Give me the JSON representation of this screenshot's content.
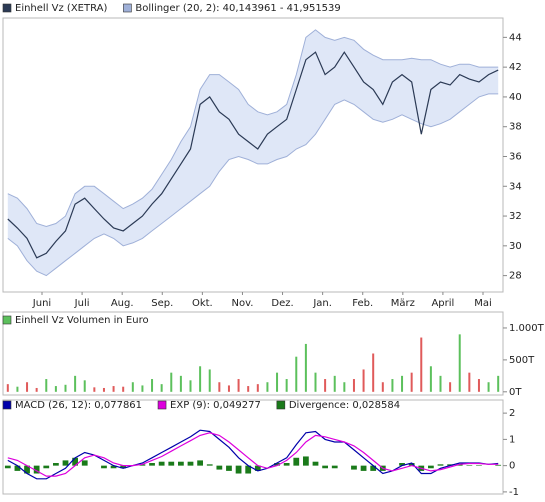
{
  "chart_data": [
    {
      "type": "line",
      "xticks": [
        "Juni",
        "Juli",
        "Aug.",
        "Sep.",
        "Okt.",
        "Nov.",
        "Dez.",
        "Jan.",
        "Feb.",
        "März",
        "April",
        "Mai"
      ],
      "ylim": [
        26.9,
        45.3
      ],
      "yticks": [
        28,
        30,
        32,
        34,
        36,
        38,
        40,
        42,
        44
      ],
      "series": [
        {
          "name": "Einhell Vz (XETRA)",
          "color": "#2b3a55",
          "values": [
            31.8,
            31.2,
            30.5,
            29.2,
            29.5,
            30.3,
            31.0,
            32.8,
            33.2,
            32.5,
            31.8,
            31.2,
            31.0,
            31.5,
            32.0,
            32.8,
            33.5,
            34.5,
            35.5,
            36.5,
            39.5,
            40.0,
            39.0,
            38.5,
            37.5,
            37.0,
            36.5,
            37.5,
            38.0,
            38.5,
            40.5,
            42.5,
            43.0,
            41.5,
            42.0,
            43.0,
            42.0,
            41.0,
            40.5,
            39.5,
            41.0,
            41.5,
            41.0,
            37.5,
            40.5,
            41.0,
            40.8,
            41.5,
            41.2,
            41.0,
            41.5,
            41.8
          ]
        },
        {
          "name": "Bollinger (20, 2): 40,143961 - 41,951539",
          "color": "#9fb0d8",
          "fill": "#dfe7f7",
          "upper": [
            33.5,
            33.2,
            32.5,
            31.5,
            31.3,
            31.5,
            32.0,
            33.5,
            34.0,
            34.0,
            33.5,
            33.0,
            32.5,
            32.8,
            33.2,
            33.8,
            34.8,
            35.8,
            37.0,
            38.0,
            40.5,
            41.5,
            41.5,
            41.0,
            40.5,
            39.5,
            39.0,
            38.8,
            39.0,
            39.5,
            41.5,
            44.0,
            44.5,
            44.0,
            43.8,
            44.0,
            43.8,
            43.2,
            42.8,
            42.5,
            42.5,
            42.5,
            42.6,
            42.5,
            42.5,
            42.2,
            42.0,
            42.2,
            42.2,
            42.0,
            42.0,
            42.0
          ],
          "lower": [
            30.5,
            30.0,
            29.0,
            28.3,
            28.0,
            28.5,
            29.0,
            29.5,
            30.0,
            30.5,
            30.8,
            30.5,
            30.0,
            30.2,
            30.5,
            31.0,
            31.5,
            32.0,
            32.5,
            33.0,
            33.5,
            34.0,
            35.0,
            35.8,
            36.0,
            35.8,
            35.5,
            35.5,
            35.8,
            36.0,
            36.5,
            36.8,
            37.5,
            38.5,
            39.5,
            39.8,
            39.5,
            39.0,
            38.5,
            38.3,
            38.5,
            38.8,
            38.5,
            38.2,
            38.0,
            38.2,
            38.5,
            39.0,
            39.5,
            40.0,
            40.2,
            40.2
          ]
        }
      ]
    },
    {
      "type": "bar",
      "title": "Einhell Vz Volumen in Euro",
      "color": "#5cc05c",
      "ylim": [
        -50,
        1250
      ],
      "yticks": [
        {
          "value": 0,
          "label": "0T"
        },
        {
          "value": 500,
          "label": "500T"
        },
        {
          "value": 1000,
          "label": "1.000T"
        }
      ],
      "values": [
        120,
        80,
        150,
        60,
        200,
        90,
        110,
        250,
        180,
        70,
        60,
        90,
        80,
        150,
        100,
        200,
        120,
        300,
        250,
        180,
        400,
        350,
        150,
        100,
        200,
        90,
        120,
        150,
        300,
        200,
        550,
        750,
        300,
        200,
        250,
        150,
        200,
        350,
        600,
        150,
        200,
        250,
        300,
        850,
        400,
        250,
        150,
        900,
        300,
        200,
        150,
        250
      ],
      "colors": [
        "#e05a5a",
        "#5cc05c",
        "#e05a5a",
        "#e05a5a",
        "#5cc05c",
        "#5cc05c",
        "#5cc05c",
        "#5cc05c",
        "#5cc05c",
        "#e05a5a",
        "#e05a5a",
        "#e05a5a",
        "#e05a5a",
        "#5cc05c",
        "#5cc05c",
        "#5cc05c",
        "#5cc05c",
        "#5cc05c",
        "#5cc05c",
        "#5cc05c",
        "#5cc05c",
        "#5cc05c",
        "#e05a5a",
        "#e05a5a",
        "#e05a5a",
        "#e05a5a",
        "#e05a5a",
        "#5cc05c",
        "#5cc05c",
        "#5cc05c",
        "#5cc05c",
        "#5cc05c",
        "#5cc05c",
        "#e05a5a",
        "#5cc05c",
        "#5cc05c",
        "#e05a5a",
        "#e05a5a",
        "#e05a5a",
        "#e05a5a",
        "#5cc05c",
        "#5cc05c",
        "#e05a5a",
        "#e05a5a",
        "#5cc05c",
        "#5cc05c",
        "#e05a5a",
        "#5cc05c",
        "#e05a5a",
        "#e05a5a",
        "#5cc05c",
        "#5cc05c"
      ]
    },
    {
      "type": "line",
      "ylim": [
        -1.08,
        2.5
      ],
      "yticks": [
        -1,
        0,
        1,
        2
      ],
      "series": [
        {
          "name": "MACD (26, 12): 0,077861",
          "color": "#0000aa",
          "values": [
            0.2,
            0.0,
            -0.3,
            -0.5,
            -0.5,
            -0.3,
            -0.1,
            0.3,
            0.5,
            0.4,
            0.2,
            0.0,
            -0.1,
            0.0,
            0.1,
            0.3,
            0.5,
            0.7,
            0.9,
            1.1,
            1.35,
            1.3,
            1.0,
            0.7,
            0.3,
            0.0,
            -0.2,
            -0.1,
            0.1,
            0.3,
            0.8,
            1.25,
            1.3,
            1.0,
            0.9,
            0.9,
            0.6,
            0.3,
            0.0,
            -0.3,
            -0.2,
            0.0,
            0.1,
            -0.3,
            -0.3,
            -0.1,
            0.0,
            0.1,
            0.1,
            0.1,
            0.05,
            0.08
          ]
        },
        {
          "name": "EXP (9): 0,049277",
          "color": "#dd00dd",
          "values": [
            0.3,
            0.2,
            0.0,
            -0.2,
            -0.4,
            -0.4,
            -0.3,
            0.0,
            0.3,
            0.4,
            0.3,
            0.1,
            0.0,
            0.0,
            0.05,
            0.2,
            0.35,
            0.55,
            0.75,
            0.95,
            1.15,
            1.25,
            1.15,
            0.9,
            0.6,
            0.3,
            0.0,
            -0.1,
            0.0,
            0.2,
            0.5,
            0.9,
            1.15,
            1.1,
            1.0,
            0.9,
            0.75,
            0.5,
            0.2,
            -0.1,
            -0.2,
            -0.1,
            0.0,
            -0.1,
            -0.2,
            -0.15,
            -0.05,
            0.05,
            0.08,
            0.08,
            0.05,
            0.05
          ]
        },
        {
          "name": "Divergence: 0,028584",
          "color": "#1a7a1a",
          "type": "bar",
          "values": [
            -0.1,
            -0.2,
            -0.3,
            -0.3,
            -0.1,
            0.1,
            0.2,
            0.3,
            0.2,
            0,
            -0.1,
            -0.1,
            -0.1,
            0,
            0.05,
            0.1,
            0.15,
            0.15,
            0.15,
            0.15,
            0.2,
            0.05,
            -0.15,
            -0.2,
            -0.3,
            -0.3,
            -0.2,
            0,
            0.1,
            0.1,
            0.3,
            0.35,
            0.15,
            -0.1,
            -0.1,
            0,
            -0.15,
            -0.2,
            -0.2,
            -0.2,
            0,
            0.1,
            0.1,
            -0.2,
            -0.1,
            0.05,
            0.05,
            0.05,
            0.02,
            0.02,
            0,
            0.03
          ]
        }
      ]
    }
  ]
}
